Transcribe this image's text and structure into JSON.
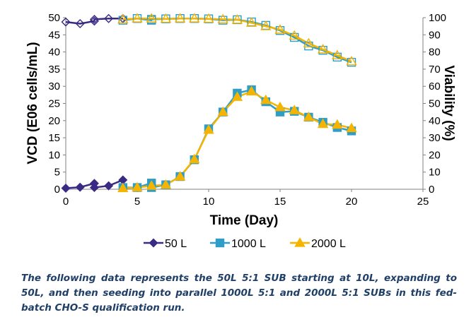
{
  "chart_data": {
    "type": "line",
    "xlabel": "Time (Day)",
    "ylabel": "VCD (E06 cells/mL)",
    "y2label": "Viability (%)",
    "xlim": [
      0,
      25
    ],
    "ylim": [
      0,
      50
    ],
    "y2lim": [
      0,
      100
    ],
    "x_ticks": [
      "0",
      "5",
      "10",
      "15",
      "20",
      "25"
    ],
    "y_ticks": [
      "0",
      "5",
      "10",
      "15",
      "20",
      "25",
      "30",
      "35",
      "40",
      "45",
      "50"
    ],
    "y2_ticks": [
      "0",
      "10",
      "20",
      "30",
      "40",
      "50",
      "60",
      "70",
      "80",
      "90",
      "100"
    ],
    "legend_position": "bottom",
    "grid": false,
    "series": [
      {
        "name": "50 L",
        "color": "#3b2a84",
        "marker": "diamond",
        "vcd": {
          "x": [
            0,
            1,
            2,
            2,
            3,
            4
          ],
          "y": [
            0.3,
            0.6,
            1.7,
            0.5,
            1.0,
            2.7
          ]
        },
        "viability": {
          "x": [
            0,
            1,
            2,
            2,
            3,
            4
          ],
          "y": [
            97.5,
            96.5,
            98.0,
            99.0,
            99.5,
            99.5
          ]
        }
      },
      {
        "name": "1000 L",
        "color": "#2e9dc8",
        "line_color": "#2e9dc8",
        "marker": "square",
        "vcd": {
          "x": [
            4,
            5,
            6,
            6,
            7,
            8,
            9,
            10,
            11,
            12,
            13,
            14,
            15,
            16,
            17,
            18,
            19,
            20
          ],
          "y": [
            0.5,
            0.5,
            1.8,
            0.5,
            1.3,
            3.7,
            8.6,
            17.6,
            22.5,
            28.0,
            29.0,
            25.5,
            22.5,
            22.7,
            21.0,
            19.5,
            18.0,
            17.0
          ]
        },
        "viability": {
          "x": [
            4,
            5,
            6,
            6,
            7,
            8,
            9,
            10,
            11,
            12,
            13,
            14,
            15,
            16,
            17,
            18,
            19,
            20
          ],
          "y": [
            98.5,
            99.5,
            98.5,
            99.0,
            99.3,
            99.5,
            99.5,
            99.3,
            98.5,
            98.8,
            97.5,
            95.5,
            92.5,
            88.5,
            83.5,
            81.0,
            77.0,
            74.0
          ]
        }
      },
      {
        "name": "2000 L",
        "color": "#f5b400",
        "line_color": "#f5b400",
        "marker": "triangle",
        "vcd": {
          "x": [
            4,
            5,
            6,
            7,
            8,
            9,
            10,
            11,
            12,
            13,
            14,
            15,
            16,
            17,
            18,
            19,
            20
          ],
          "y": [
            0.3,
            0.5,
            1.0,
            1.3,
            3.7,
            8.7,
            17.3,
            22.5,
            26.9,
            28.5,
            26.0,
            23.9,
            23.0,
            21.0,
            19.0,
            18.8,
            17.8
          ]
        },
        "viability": {
          "x": [
            4,
            5,
            6,
            7,
            8,
            9,
            10,
            11,
            12,
            13,
            14,
            15,
            16,
            17,
            18,
            19,
            20
          ],
          "y": [
            99.0,
            99.5,
            99.5,
            99.3,
            99.5,
            99.5,
            99.3,
            99.0,
            98.8,
            97.0,
            95.0,
            93.0,
            89.5,
            85.0,
            81.5,
            78.0,
            74.5
          ]
        }
      }
    ]
  },
  "caption": "The following data represents the 50L 5:1 SUB starting at 10L, expanding to 50L, and then seeding into parallel 1000L 5:1 and 2000L 5:1 SUBs in this fed-batch CHO-S qualification run."
}
